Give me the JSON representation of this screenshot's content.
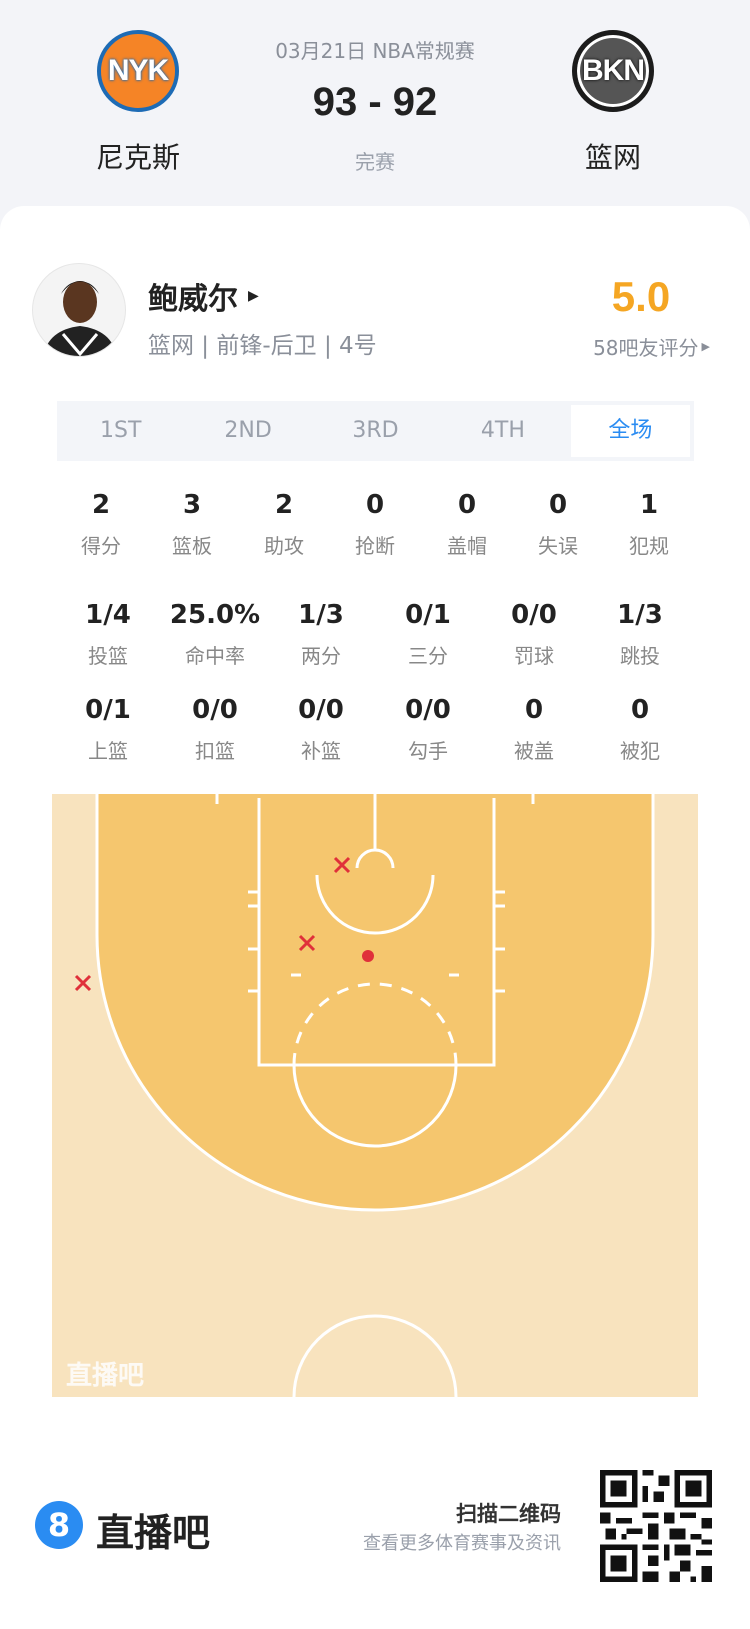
{
  "header": {
    "date_league": "03月21日 NBA常规赛",
    "score": "93 - 92",
    "status": "完赛",
    "home": {
      "name": "尼克斯",
      "logo_text": "NYK"
    },
    "away": {
      "name": "篮网",
      "logo_text": "BKN"
    }
  },
  "player": {
    "name": "鲍威尔",
    "info": "篮网 | 前锋-后卫 | 4号",
    "rating": "5.0",
    "rating_label": "58吧友评分",
    "rating_color": "#f5a623"
  },
  "tabs": [
    {
      "label": "1ST"
    },
    {
      "label": "2ND"
    },
    {
      "label": "3RD"
    },
    {
      "label": "4TH"
    },
    {
      "label": "全场",
      "active": true
    }
  ],
  "stats_row1": [
    {
      "value": "2",
      "label": "得分"
    },
    {
      "value": "3",
      "label": "篮板"
    },
    {
      "value": "2",
      "label": "助攻"
    },
    {
      "value": "0",
      "label": "抢断"
    },
    {
      "value": "0",
      "label": "盖帽"
    },
    {
      "value": "0",
      "label": "失误"
    },
    {
      "value": "1",
      "label": "犯规"
    }
  ],
  "stats_row2": [
    {
      "value": "1/4",
      "label": "投篮"
    },
    {
      "value": "25.0%",
      "label": "命中率"
    },
    {
      "value": "1/3",
      "label": "两分"
    },
    {
      "value": "0/1",
      "label": "三分"
    },
    {
      "value": "0/0",
      "label": "罚球"
    },
    {
      "value": "1/3",
      "label": "跳投"
    }
  ],
  "stats_row3": [
    {
      "value": "0/1",
      "label": "上篮"
    },
    {
      "value": "0/0",
      "label": "扣篮"
    },
    {
      "value": "0/0",
      "label": "补篮"
    },
    {
      "value": "0/0",
      "label": "勾手"
    },
    {
      "value": "0",
      "label": "被盖"
    },
    {
      "value": "0",
      "label": "被犯"
    }
  ],
  "shot_chart": {
    "watermark": "直播吧",
    "shots": [
      {
        "result": "miss",
        "zone": "near basket left"
      },
      {
        "result": "miss",
        "zone": "mid-range left"
      },
      {
        "result": "miss",
        "zone": "left corner three"
      },
      {
        "result": "made",
        "zone": "paint"
      }
    ],
    "miss_color": "#e0303a",
    "made_color": "#e0303a"
  },
  "footer": {
    "brand": "直播吧",
    "brand_icon": "8",
    "scan_title": "扫描二维码",
    "scan_subtitle": "查看更多体育赛事及资讯"
  }
}
